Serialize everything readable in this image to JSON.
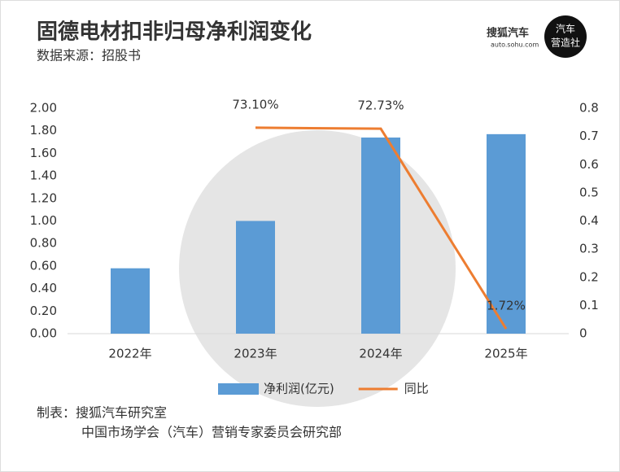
{
  "chart_data": {
    "type": "bar-line",
    "title": "固德电材扣非归母净利润变化",
    "subtitle": "数据来源：招股书",
    "categories": [
      "2022年",
      "2023年",
      "2024年",
      "2025年"
    ],
    "series": [
      {
        "name": "净利润(亿元)",
        "type": "bar",
        "color": "#5b9bd5",
        "values": [
          0.58,
          1.0,
          1.74,
          1.77
        ]
      },
      {
        "name": "同比",
        "type": "line",
        "axis": "y2",
        "color": "#ed7d31",
        "values": [
          null,
          0.731,
          0.7273,
          0.0172
        ],
        "value_labels": [
          null,
          "73.10%",
          "72.73%",
          "1.72%"
        ]
      }
    ],
    "ylim": [
      0,
      2
    ],
    "yticks": [
      {
        "value": 0,
        "label": "0.00"
      },
      {
        "value": 0.2,
        "label": "0.20"
      },
      {
        "value": 0.4,
        "label": "0.40"
      },
      {
        "value": 0.6,
        "label": "0.60"
      },
      {
        "value": 0.8,
        "label": "0.80"
      },
      {
        "value": 1,
        "label": "1.00"
      },
      {
        "value": 1.2,
        "label": "1.20"
      },
      {
        "value": 1.4,
        "label": "1.40"
      },
      {
        "value": 1.6,
        "label": "1.60"
      },
      {
        "value": 1.8,
        "label": "1.80"
      },
      {
        "value": 2,
        "label": "2.00"
      }
    ],
    "y2lim": [
      0,
      0.8
    ],
    "y2ticks": [
      0,
      0.1,
      0.2,
      0.3,
      0.4,
      0.5,
      0.6,
      0.7,
      0.8
    ],
    "grid": false,
    "legend": "bottom"
  },
  "logo": {
    "brand": "搜狐汽车",
    "url": "auto.sohu.com",
    "badge": [
      "汽车",
      "营造社"
    ]
  },
  "footer": [
    "制表：搜狐汽车研究室",
    "中国市场学会（汽车）营销专家委员会研究部"
  ]
}
